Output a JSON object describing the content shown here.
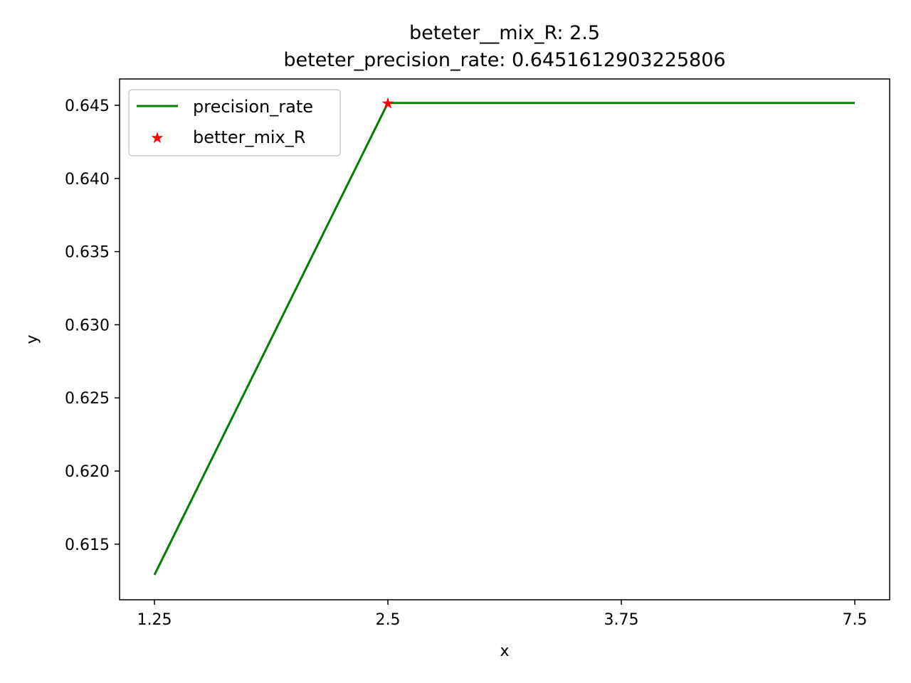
{
  "chart_data": {
    "type": "line",
    "title_line1": "beteter__mix_R: 2.5",
    "title_line2": "beteter_precision_rate: 0.6451612903225806",
    "xlabel": "x",
    "ylabel": "y",
    "x_categories": [
      "1.25",
      "2.5",
      "3.75",
      "7.5"
    ],
    "y_ticks": [
      0.615,
      0.62,
      0.625,
      0.63,
      0.635,
      0.64,
      0.645
    ],
    "y_tick_labels": [
      "0.615",
      "0.620",
      "0.625",
      "0.630",
      "0.635",
      "0.640",
      "0.645"
    ],
    "ylim": [
      0.6112,
      0.6468
    ],
    "series": [
      {
        "name": "precision_rate",
        "color": "#008000",
        "values": [
          0.6129,
          0.6451612903225806,
          0.6451612903225806,
          0.6451612903225806
        ]
      }
    ],
    "marker": {
      "name": "better_mix_R",
      "color": "#ff0000",
      "x_index": 1,
      "y": 0.6451612903225806
    },
    "legend_placement": "upper-left",
    "grid": false
  }
}
